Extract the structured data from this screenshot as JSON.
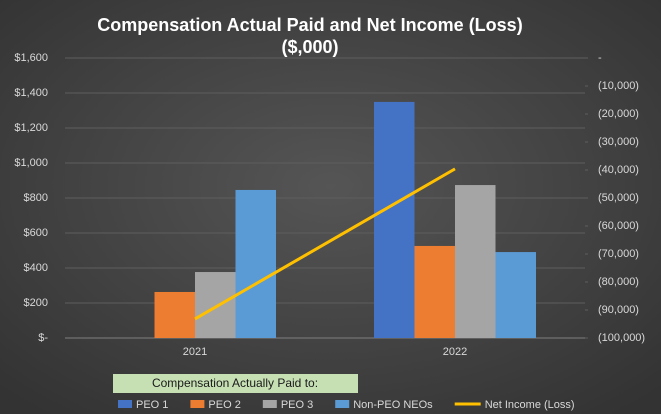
{
  "chart_data": {
    "type": "bar",
    "title": [
      "Compensation Actual Paid and Net Income (Loss)",
      "($,000)"
    ],
    "categories": [
      "2021",
      "2022"
    ],
    "series": [
      {
        "name": "PEO 1",
        "color": "#4472c4",
        "values": [
          null,
          1349
        ]
      },
      {
        "name": "PEO 2",
        "color": "#ed7d31",
        "values": [
          263,
          526
        ]
      },
      {
        "name": "PEO 3",
        "color": "#a5a5a5",
        "values": [
          377,
          874
        ]
      },
      {
        "name": "Non-PEO NEOs",
        "color": "#5b9bd5",
        "values": [
          846,
          491
        ]
      },
      {
        "name": "Net Income (Loss)",
        "color": "#ffc000",
        "type": "line",
        "axis": "y2",
        "values": [
          -93200,
          -39600
        ]
      }
    ],
    "legend_title": "Compensation Actually Paid to:",
    "ylim": [
      0,
      1600
    ],
    "yticks": [
      {
        "value": 0,
        "label": "$-"
      },
      {
        "value": 200,
        "label": "$200"
      },
      {
        "value": 400,
        "label": "$400"
      },
      {
        "value": 600,
        "label": "$600"
      },
      {
        "value": 800,
        "label": "$800"
      },
      {
        "value": 1000,
        "label": "$1,000"
      },
      {
        "value": 1200,
        "label": "$1,200"
      },
      {
        "value": 1400,
        "label": "$1,400"
      },
      {
        "value": 1600,
        "label": "$1,600"
      }
    ],
    "y2lim": [
      -100000,
      0
    ],
    "y2ticks": [
      {
        "value": 0,
        "label": "-"
      },
      {
        "value": -10000,
        "label": "(10,000)"
      },
      {
        "value": -20000,
        "label": "(20,000)"
      },
      {
        "value": -30000,
        "label": "(30,000)"
      },
      {
        "value": -40000,
        "label": "(40,000)"
      },
      {
        "value": -50000,
        "label": "(50,000)"
      },
      {
        "value": -60000,
        "label": "(60,000)"
      },
      {
        "value": -70000,
        "label": "(70,000)"
      },
      {
        "value": -80000,
        "label": "(80,000)"
      },
      {
        "value": -90000,
        "label": "(90,000)"
      },
      {
        "value": -100000,
        "label": "(100,000)"
      }
    ],
    "grid": true
  }
}
